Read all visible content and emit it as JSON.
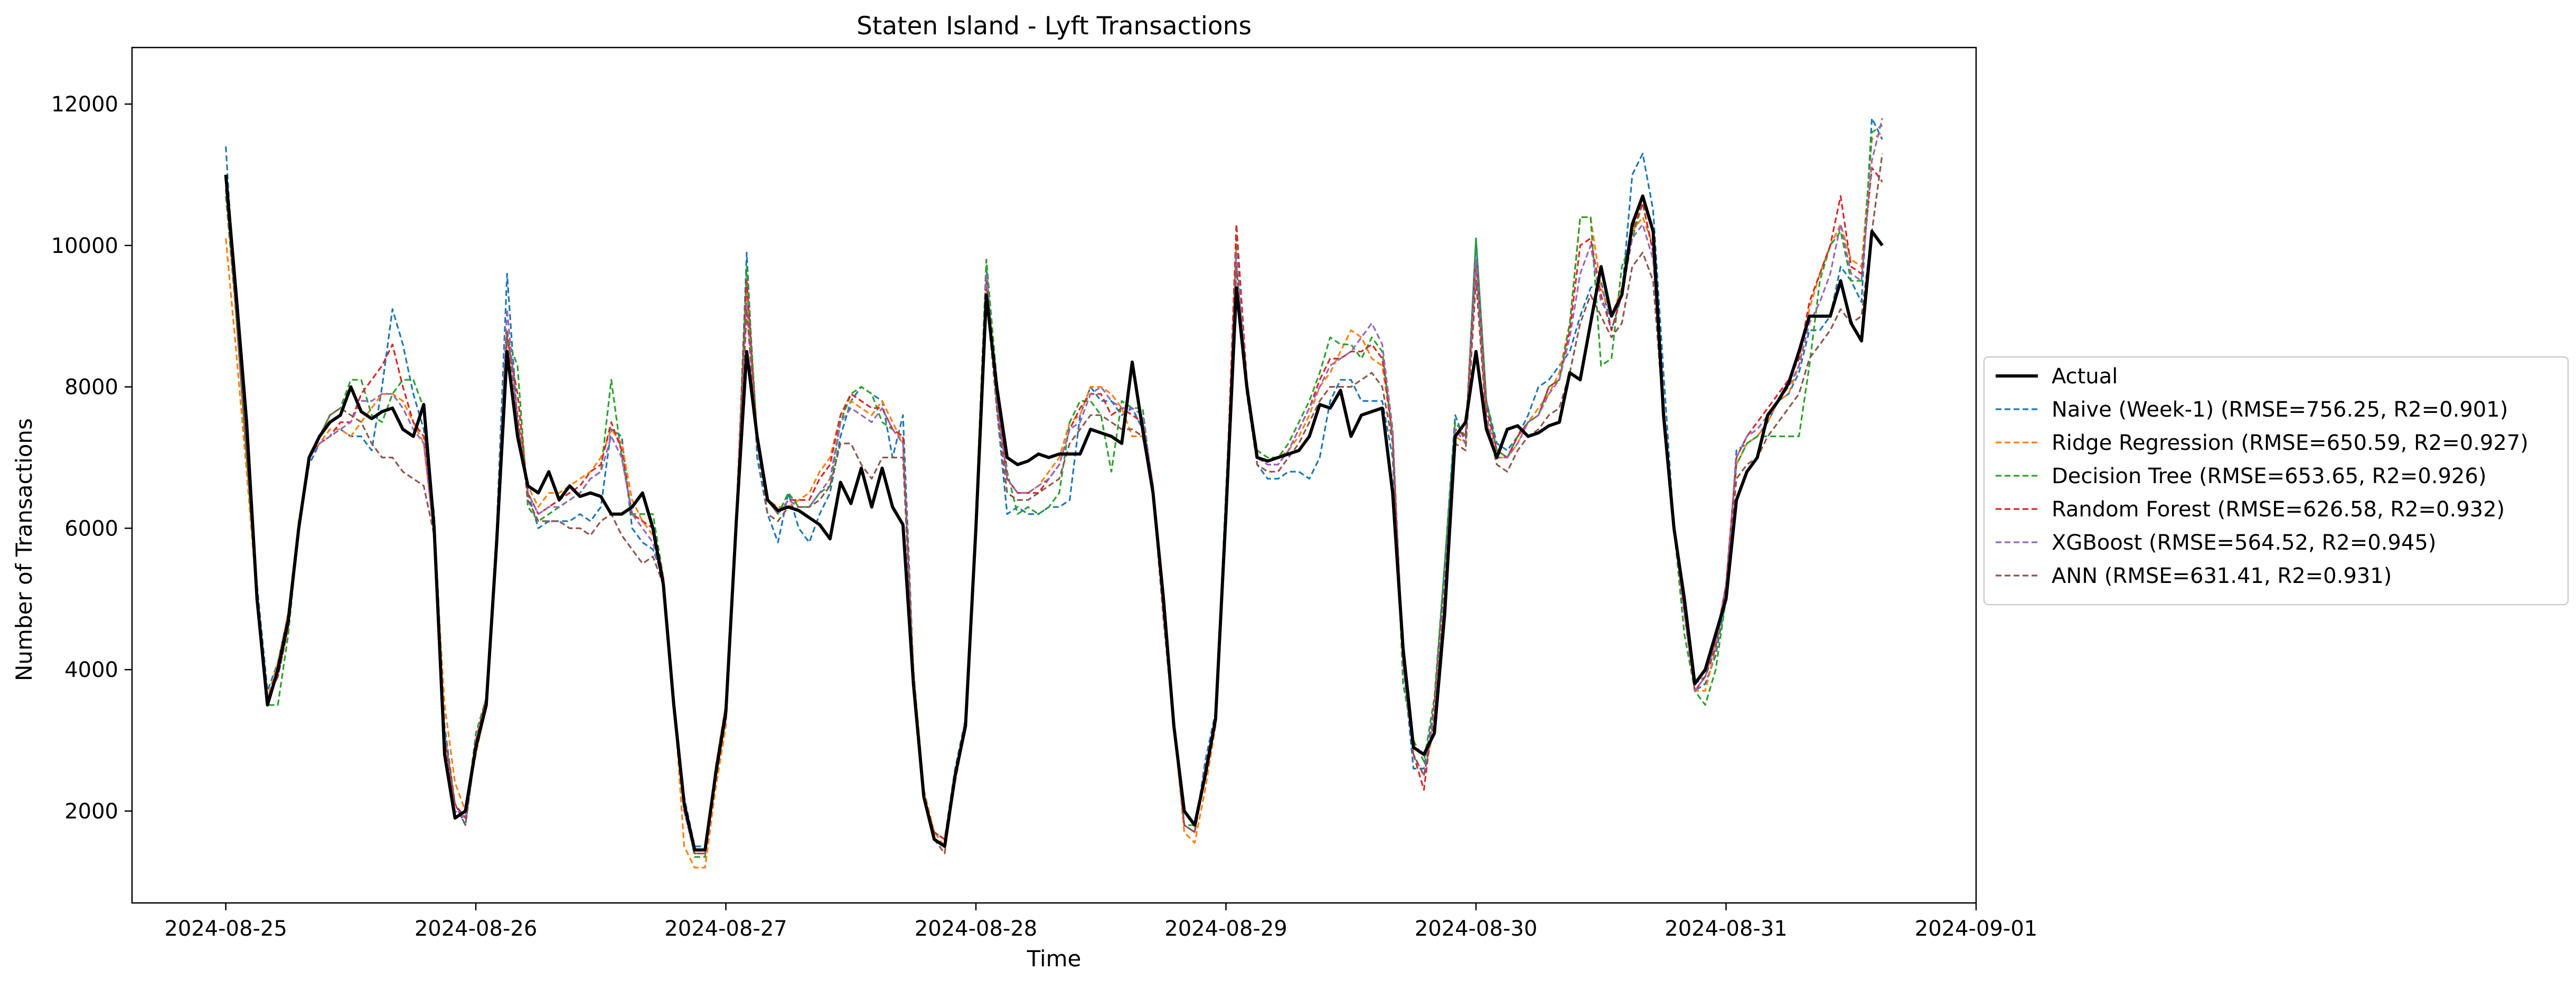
{
  "chart_data": {
    "type": "line",
    "title": "Staten Island - Lyft Transactions",
    "xlabel": "Time",
    "ylabel": "Number of Transactions",
    "xlim": [
      "2024-08-24T15:00",
      "2024-09-01T00:00"
    ],
    "ylim": [
      700,
      12800
    ],
    "x_ticks": [
      "2024-08-25",
      "2024-08-26",
      "2024-08-27",
      "2024-08-28",
      "2024-08-29",
      "2024-08-30",
      "2024-08-31",
      "2024-09-01"
    ],
    "y_ticks": [
      2000,
      4000,
      6000,
      8000,
      10000,
      12000
    ],
    "grid": false,
    "legend_position": "center-right-outside",
    "x_start": "2024-08-25T00:00",
    "x_step_hours": 1,
    "series": [
      {
        "name": "Actual",
        "color": "#000000",
        "style": "solid",
        "values": [
          11000,
          9300,
          7500,
          5000,
          3500,
          4000,
          4700,
          6000,
          7000,
          7300,
          7500,
          7600,
          8000,
          7650,
          7550,
          7650,
          7700,
          7400,
          7300,
          7750,
          6000,
          2800,
          1900,
          2000,
          2900,
          3500,
          5800,
          8500,
          7300,
          6600,
          6500,
          6800,
          6400,
          6600,
          6450,
          6500,
          6450,
          6200,
          6200,
          6300,
          6500,
          6000,
          5200,
          3500,
          2100,
          1450,
          1450,
          2500,
          3400,
          6100,
          8500,
          7300,
          6400,
          6250,
          6300,
          6250,
          6150,
          6050,
          5850,
          6650,
          6350,
          6850,
          6300,
          6850,
          6300,
          6050,
          3800,
          2200,
          1600,
          1500,
          2500,
          3200,
          6000,
          9300,
          8000,
          7000,
          6900,
          6950,
          7050,
          7000,
          7050,
          7050,
          7050,
          7400,
          7350,
          7300,
          7200,
          8350,
          7400,
          6500,
          5000,
          3200,
          2000,
          1800,
          2500,
          3300,
          6200,
          9400,
          8000,
          7000,
          6950,
          7000,
          7050,
          7100,
          7300,
          7750,
          7700,
          7950,
          7300,
          7600,
          7650,
          7700,
          6500,
          4300,
          2900,
          2800,
          3100,
          4800,
          7300,
          7500,
          8500,
          7400,
          7000,
          7400,
          7450,
          7300,
          7350,
          7450,
          7500,
          8200,
          8100,
          8900,
          9700,
          9000,
          9300,
          10300,
          10700,
          10200,
          7600,
          6000,
          5000,
          3800,
          4000,
          4500,
          5000,
          6400,
          6800,
          7000,
          7600,
          7800,
          8050,
          8500,
          9000,
          9000,
          9000,
          9500,
          8900,
          8650,
          10200,
          10000
        ]
      },
      {
        "name": "Naive (Week-1) (RMSE=756.25, R2=0.901)",
        "color": "#1f77b4",
        "style": "dashed",
        "values": [
          11400,
          9000,
          7000,
          5200,
          3700,
          4100,
          4800,
          6000,
          6900,
          7200,
          7300,
          7400,
          7300,
          7300,
          7100,
          8000,
          9100,
          8600,
          7900,
          7400,
          6200,
          3200,
          2100,
          1800,
          2900,
          3500,
          6000,
          9600,
          7500,
          6500,
          6000,
          6100,
          6100,
          6100,
          6200,
          6100,
          6300,
          7400,
          7300,
          6000,
          5800,
          5700,
          5300,
          3600,
          2200,
          1500,
          1500,
          2500,
          3300,
          6000,
          9900,
          7000,
          6200,
          5800,
          6500,
          6000,
          5800,
          6200,
          6500,
          7300,
          7800,
          8000,
          7900,
          7800,
          7000,
          7600,
          4000,
          2200,
          1700,
          1600,
          2600,
          3300,
          6100,
          9700,
          7700,
          6200,
          6300,
          6200,
          6200,
          6300,
          6300,
          6400,
          7600,
          8000,
          7800,
          7800,
          7600,
          7700,
          7400,
          6600,
          4800,
          3200,
          1800,
          1700,
          2700,
          3400,
          6500,
          9700,
          8100,
          6900,
          6700,
          6700,
          6800,
          6800,
          6700,
          7000,
          7800,
          8100,
          8100,
          7800,
          7800,
          7800,
          7000,
          4100,
          2600,
          2600,
          3500,
          5500,
          7600,
          7200,
          10100,
          7800,
          7200,
          7100,
          7300,
          7600,
          8000,
          8100,
          8300,
          8500,
          9000,
          9400,
          9500,
          8800,
          9300,
          11000,
          11300,
          10500,
          8200,
          6000,
          4800,
          3700,
          3800,
          4200,
          5000,
          7100,
          7200,
          7300,
          7500,
          7800,
          7900,
          8200,
          8800,
          8800,
          9000,
          9700,
          9500,
          9200,
          11800,
          11500
        ]
      },
      {
        "name": "Ridge Regression (RMSE=650.59, R2=0.927)",
        "color": "#ff7f0e",
        "style": "dashed",
        "values": [
          10100,
          8500,
          6800,
          5000,
          3600,
          4100,
          4800,
          6100,
          7000,
          7200,
          7400,
          7400,
          7300,
          7500,
          7700,
          7900,
          7900,
          7800,
          7500,
          7200,
          5900,
          3500,
          2400,
          2000,
          2800,
          3500,
          6000,
          8800,
          7600,
          6600,
          6300,
          6500,
          6500,
          6600,
          6700,
          6800,
          7000,
          7400,
          7200,
          6400,
          6100,
          5900,
          5300,
          3600,
          1500,
          1200,
          1200,
          2300,
          3200,
          6000,
          9500,
          7200,
          6400,
          6300,
          6300,
          6400,
          6500,
          6800,
          7000,
          7600,
          7800,
          7700,
          7600,
          7800,
          7500,
          7200,
          4000,
          2300,
          1700,
          1500,
          2400,
          3200,
          6200,
          9800,
          7800,
          6700,
          6500,
          6500,
          6600,
          6800,
          7000,
          7500,
          7600,
          8000,
          8000,
          7900,
          7700,
          7300,
          7300,
          6600,
          4800,
          3200,
          1700,
          1550,
          2300,
          3200,
          6300,
          10000,
          8000,
          7100,
          7000,
          7000,
          7100,
          7300,
          7600,
          8000,
          8200,
          8500,
          8800,
          8700,
          8400,
          8300,
          7300,
          4200,
          2800,
          2500,
          3200,
          5000,
          7300,
          7200,
          9800,
          7500,
          7000,
          7000,
          7200,
          7500,
          7700,
          7900,
          8200,
          8900,
          10400,
          10400,
          9400,
          9000,
          9400,
          10200,
          10400,
          10000,
          7800,
          6000,
          4900,
          3700,
          3700,
          4300,
          5200,
          6900,
          7200,
          7300,
          7500,
          7800,
          7900,
          8300,
          9100,
          9600,
          10000,
          10300,
          9800,
          9700,
          11500,
          11600
        ]
      },
      {
        "name": "Decision Tree (RMSE=653.65, R2=0.926)",
        "color": "#2ca02c",
        "style": "dashed",
        "values": [
          10700,
          9000,
          7000,
          5000,
          3500,
          3500,
          4500,
          6000,
          7000,
          7300,
          7600,
          7700,
          8100,
          8100,
          7600,
          7500,
          7900,
          8100,
          8100,
          7700,
          6000,
          2900,
          2000,
          1900,
          3100,
          3600,
          5800,
          8700,
          8300,
          6300,
          6100,
          6200,
          6300,
          6400,
          6500,
          6700,
          6800,
          8100,
          7000,
          6200,
          6200,
          6200,
          5300,
          3600,
          2200,
          1350,
          1350,
          2600,
          3500,
          6100,
          9700,
          7300,
          6400,
          6200,
          6500,
          6300,
          6300,
          6500,
          6600,
          7500,
          7900,
          8000,
          7900,
          7500,
          7400,
          7300,
          3800,
          2200,
          1700,
          1600,
          2500,
          3200,
          6100,
          9800,
          8100,
          6800,
          6200,
          6300,
          6200,
          6300,
          6500,
          7500,
          7800,
          7800,
          7600,
          6800,
          7800,
          7700,
          7700,
          6500,
          4900,
          3200,
          1800,
          1800,
          2500,
          3300,
          6200,
          10100,
          8000,
          7100,
          7000,
          7000,
          7200,
          7500,
          7800,
          8200,
          8700,
          8600,
          8600,
          8400,
          8700,
          8500,
          7300,
          3800,
          3000,
          2700,
          3600,
          5500,
          7500,
          7300,
          10100,
          7800,
          7100,
          7000,
          7300,
          7500,
          7600,
          8000,
          8100,
          8900,
          10400,
          10400,
          8300,
          8400,
          9700,
          10100,
          10600,
          9900,
          7700,
          6000,
          4500,
          3700,
          3500,
          4000,
          5000,
          6900,
          7200,
          7300,
          7300,
          7300,
          7300,
          7300,
          8300,
          9500,
          10000,
          10200,
          9500,
          9500,
          11600,
          11700
        ]
      },
      {
        "name": "Random Forest (RMSE=626.58, R2=0.932)",
        "color": "#d62728",
        "style": "dashed",
        "values": [
          10900,
          9100,
          7200,
          5100,
          3600,
          3900,
          4600,
          6000,
          7000,
          7200,
          7300,
          7500,
          7500,
          7900,
          8100,
          8300,
          8600,
          8000,
          7500,
          7300,
          6000,
          3000,
          2100,
          1900,
          3000,
          3600,
          5900,
          8700,
          7900,
          6500,
          6200,
          6300,
          6400,
          6500,
          6600,
          6800,
          6900,
          7500,
          7100,
          6200,
          6100,
          6000,
          5300,
          3500,
          2000,
          1400,
          1400,
          2600,
          3500,
          6200,
          9500,
          7300,
          6400,
          6200,
          6400,
          6400,
          6400,
          6700,
          6900,
          7600,
          7900,
          7800,
          7700,
          7700,
          7400,
          7300,
          3900,
          2200,
          1700,
          1600,
          2500,
          3300,
          6200,
          9500,
          7900,
          6700,
          6500,
          6500,
          6500,
          6700,
          6900,
          7400,
          7700,
          7900,
          7900,
          7600,
          7700,
          7600,
          7500,
          6600,
          4800,
          3200,
          1800,
          1700,
          2600,
          3300,
          6300,
          10300,
          8100,
          7000,
          6900,
          6900,
          7100,
          7400,
          7700,
          8100,
          8400,
          8400,
          8500,
          8500,
          8600,
          8400,
          7300,
          4100,
          2800,
          2300,
          3500,
          5200,
          7400,
          7300,
          9800,
          7700,
          7100,
          7000,
          7300,
          7500,
          7600,
          8000,
          8100,
          8800,
          10000,
          10100,
          9300,
          8800,
          9300,
          10200,
          10600,
          9900,
          7700,
          6000,
          4800,
          3700,
          3900,
          4400,
          5200,
          7000,
          7300,
          7500,
          7700,
          7900,
          8100,
          8400,
          9200,
          9600,
          10000,
          10700,
          9700,
          9600,
          11100,
          10900
        ]
      },
      {
        "name": "XGBoost (RMSE=564.52, R2=0.945)",
        "color": "#9467bd",
        "style": "dashed",
        "values": [
          10800,
          9000,
          7100,
          5000,
          3600,
          3900,
          4600,
          6000,
          7000,
          7200,
          7300,
          7400,
          7500,
          7800,
          7800,
          7900,
          7900,
          7700,
          7400,
          7200,
          5900,
          2900,
          2000,
          1900,
          3000,
          3500,
          5900,
          9100,
          7500,
          6500,
          6200,
          6300,
          6300,
          6400,
          6500,
          6700,
          6800,
          7300,
          7000,
          6200,
          6000,
          5800,
          5200,
          3500,
          2000,
          1400,
          1400,
          2500,
          3400,
          6100,
          9200,
          7200,
          6400,
          6200,
          6400,
          6300,
          6300,
          6500,
          6700,
          7500,
          7700,
          7600,
          7500,
          7700,
          7400,
          7200,
          3900,
          2200,
          1600,
          1500,
          2500,
          3300,
          6100,
          9600,
          7800,
          6700,
          6500,
          6500,
          6600,
          6700,
          6900,
          7400,
          7500,
          7900,
          8000,
          7800,
          7700,
          7700,
          7600,
          6600,
          4800,
          3200,
          1800,
          1700,
          2600,
          3300,
          6300,
          9900,
          8000,
          7000,
          6900,
          6900,
          7100,
          7400,
          7700,
          8000,
          8300,
          8400,
          8500,
          8700,
          8900,
          8600,
          7400,
          4100,
          2800,
          2500,
          3400,
          5100,
          7400,
          7200,
          9800,
          7600,
          7000,
          7000,
          7200,
          7500,
          7600,
          7900,
          8100,
          8700,
          9600,
          10000,
          9200,
          9000,
          9300,
          10100,
          10300,
          9800,
          7600,
          6000,
          4800,
          3700,
          3900,
          4400,
          5200,
          7000,
          7300,
          7400,
          7600,
          7800,
          8000,
          8300,
          8900,
          9200,
          9600,
          10300,
          9600,
          9500,
          11200,
          11800
        ]
      },
      {
        "name": "ANN (RMSE=631.41, R2=0.931)",
        "color": "#8c564b",
        "style": "dashed",
        "values": [
          10800,
          9000,
          7100,
          5000,
          3600,
          3900,
          4600,
          6000,
          7000,
          7300,
          7600,
          7700,
          7600,
          7500,
          7200,
          7000,
          7000,
          6800,
          6700,
          6600,
          5900,
          3100,
          2100,
          1800,
          2900,
          3500,
          5900,
          8800,
          7600,
          6400,
          6100,
          6100,
          6100,
          6000,
          6000,
          5900,
          6100,
          6200,
          5900,
          5700,
          5500,
          5600,
          5200,
          3600,
          2100,
          1400,
          1400,
          2500,
          3300,
          6000,
          9100,
          7200,
          6200,
          6100,
          6300,
          6300,
          6300,
          6400,
          6600,
          7200,
          7200,
          6900,
          6700,
          7000,
          7000,
          7000,
          3900,
          2200,
          1600,
          1400,
          2500,
          3200,
          6000,
          9300,
          7700,
          6500,
          6400,
          6400,
          6500,
          6600,
          6700,
          7200,
          7400,
          7600,
          7600,
          7500,
          7400,
          7400,
          7300,
          6500,
          4700,
          3200,
          1800,
          1700,
          2500,
          3300,
          6200,
          9700,
          7900,
          6900,
          6800,
          6800,
          7000,
          7200,
          7500,
          7800,
          8000,
          8000,
          8000,
          8100,
          8200,
          8000,
          7200,
          4200,
          2800,
          2500,
          3300,
          5000,
          7200,
          7100,
          9500,
          7500,
          6900,
          6800,
          7100,
          7300,
          7400,
          7600,
          7700,
          8200,
          8900,
          9300,
          9000,
          8700,
          8900,
          9700,
          9900,
          9500,
          7600,
          6000,
          4900,
          3800,
          3900,
          4300,
          5100,
          6700,
          6900,
          7000,
          7300,
          7500,
          7700,
          7900,
          8400,
          8600,
          8800,
          9100,
          8900,
          9000,
          10200,
          11300
        ]
      }
    ]
  }
}
